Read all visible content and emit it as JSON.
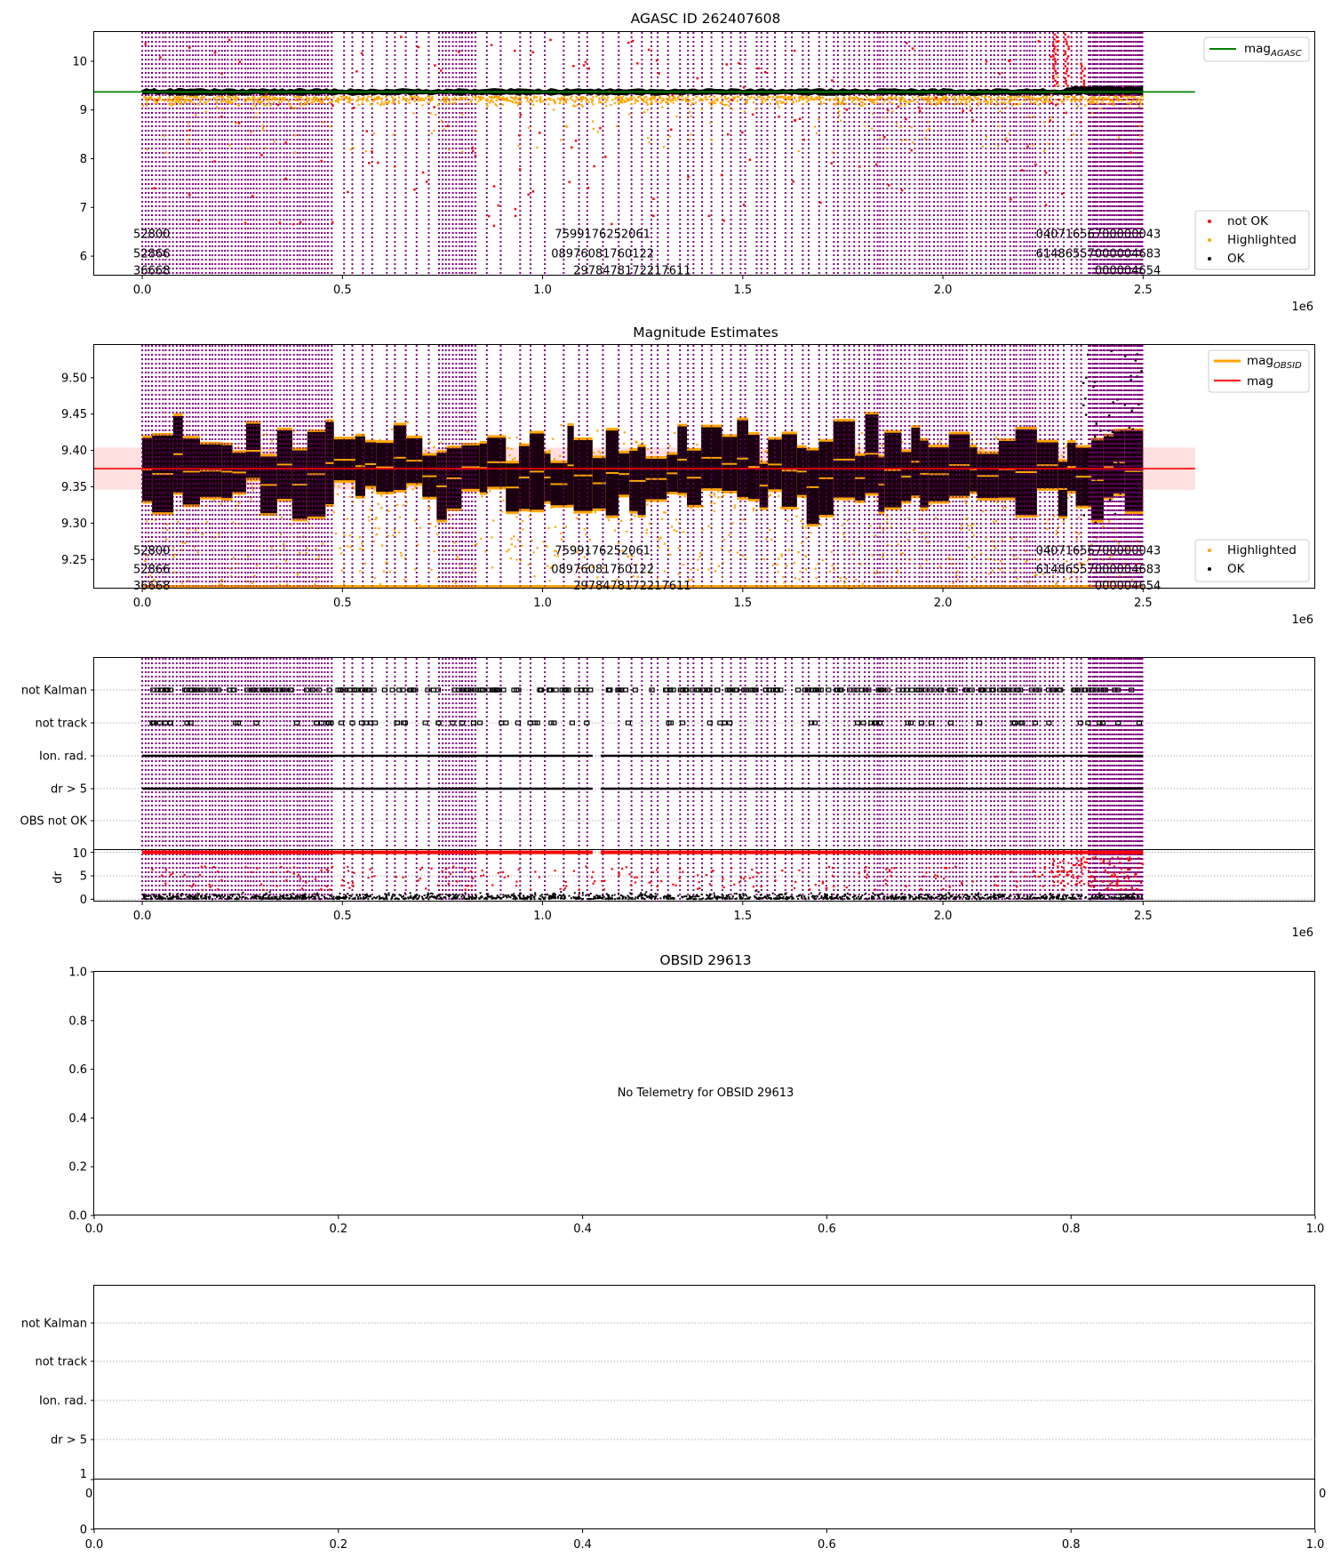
{
  "colors": {
    "purple": "#800080",
    "orange": "#ffa500",
    "red": "#ff0000",
    "black": "#000000",
    "green": "#008000",
    "band": "#ffcccc",
    "grid": "#b0b0b0"
  },
  "chart_data": [
    {
      "id": "agasc",
      "type": "scatter",
      "title": "AGASC ID 262407608",
      "xlabel": "",
      "ylabel": "",
      "x_offset_label": "1e6",
      "xlim": [
        -0.12,
        2.93
      ],
      "ylim": [
        5.6,
        10.6
      ],
      "x_ticks": [
        0.0,
        0.5,
        1.0,
        1.5,
        2.0,
        2.5
      ],
      "x_tick_labels": [
        "0.0",
        "0.5",
        "1.0",
        "1.5",
        "2.0",
        "2.5"
      ],
      "y_ticks": [
        6,
        7,
        8,
        9,
        10
      ],
      "y_tick_labels": [
        "6",
        "7",
        "8",
        "9",
        "10"
      ],
      "reference_lines": [
        {
          "name": "mag_AGASC",
          "y": 9.37,
          "color": "#008000",
          "x_range": [
            -0.12,
            2.63
          ]
        }
      ],
      "series": [
        {
          "name": "not OK",
          "color": "#ff0000",
          "approx_y_range": [
            6.6,
            10.6
          ]
        },
        {
          "name": "Highlighted",
          "color": "#ffa500",
          "approx_y_range": [
            8.0,
            9.7
          ]
        },
        {
          "name": "OK",
          "color": "#000000",
          "approx_y_range": [
            9.3,
            9.45
          ]
        }
      ],
      "data_x_range": [
        0.0,
        2.5
      ],
      "legends": [
        {
          "position": "upper-right",
          "entries": [
            {
              "label": "mag",
              "subscript": "AGASC",
              "kind": "line",
              "color": "#008000"
            }
          ]
        },
        {
          "position": "lower-right",
          "entries": [
            {
              "label": "not OK",
              "kind": "marker",
              "color": "#ff0000"
            },
            {
              "label": "Highlighted",
              "kind": "marker",
              "color": "#ffa500"
            },
            {
              "label": "OK",
              "kind": "marker",
              "color": "#000000"
            }
          ]
        }
      ],
      "annotation_rows": [
        {
          "first": "5",
          "last": "3",
          "left_fragment": "52800",
          "middle_sample": "7599176252061",
          "right_fragment": "04071656700000043"
        },
        {
          "first": "5",
          "last": "3",
          "left_fragment": "52866",
          "middle_sample": "08976081760122",
          "right_fragment": "61486557000004683"
        },
        {
          "first": "3",
          "last": "4",
          "left_fragment": "36668",
          "middle_sample": "2978478172217611",
          "right_fragment": "000004654"
        }
      ],
      "grid": false
    },
    {
      "id": "mag-estimates",
      "type": "scatter",
      "title": "Magnitude Estimates",
      "x_offset_label": "1e6",
      "xlim": [
        -0.12,
        2.93
      ],
      "ylim": [
        9.21,
        9.545
      ],
      "x_ticks": [
        0.0,
        0.5,
        1.0,
        1.5,
        2.0,
        2.5
      ],
      "x_tick_labels": [
        "0.0",
        "0.5",
        "1.0",
        "1.5",
        "2.0",
        "2.5"
      ],
      "y_ticks": [
        9.25,
        9.3,
        9.35,
        9.4,
        9.45,
        9.5
      ],
      "y_tick_labels": [
        "9.25",
        "9.30",
        "9.35",
        "9.40",
        "9.45",
        "9.50"
      ],
      "reference_lines": [
        {
          "name": "mag",
          "y": 9.375,
          "color": "#ff0000",
          "x_range": [
            -0.12,
            2.63
          ]
        }
      ],
      "bands": [
        {
          "name": "mag uncertainty",
          "y_range": [
            9.346,
            9.404
          ],
          "color": "#ffcccc",
          "x_range": [
            -0.12,
            2.63
          ]
        }
      ],
      "series": [
        {
          "name": "mag_OBSID",
          "color": "#ffa500",
          "kind": "segments"
        },
        {
          "name": "Highlighted",
          "color": "#ffa500",
          "approx_y_range": [
            9.21,
            9.545
          ]
        },
        {
          "name": "OK",
          "color": "#000000",
          "approx_y_range": [
            9.27,
            9.545
          ]
        }
      ],
      "legends": [
        {
          "position": "upper-right",
          "entries": [
            {
              "label": "mag",
              "subscript": "OBSID",
              "kind": "line",
              "color": "#ffa500"
            },
            {
              "label": "mag",
              "subscript": "",
              "kind": "line",
              "color": "#ff0000"
            }
          ]
        },
        {
          "position": "lower-right",
          "entries": [
            {
              "label": "Highlighted",
              "kind": "marker",
              "color": "#ffa500"
            },
            {
              "label": "OK",
              "kind": "marker",
              "color": "#000000"
            }
          ]
        }
      ],
      "grid": false
    },
    {
      "id": "flags",
      "type": "scatter",
      "title": "",
      "x_offset_label": "1e6",
      "xlim": [
        -0.12,
        2.93
      ],
      "x_ticks": [
        0.0,
        0.5,
        1.0,
        1.5,
        2.0,
        2.5
      ],
      "x_tick_labels": [
        "0.0",
        "0.5",
        "1.0",
        "1.5",
        "2.0",
        "2.5"
      ],
      "flag_rows": [
        "not Kalman",
        "not track",
        "Ion. rad.",
        "dr > 5",
        "OBS not OK"
      ],
      "dr_panel": {
        "ylabel": "dr",
        "ylim": [
          -0.5,
          10.5
        ],
        "y_ticks": [
          0,
          5,
          10
        ],
        "y_tick_labels": [
          "0",
          "5",
          "10"
        ],
        "clip_value": 10
      },
      "grid": true
    },
    {
      "id": "obsid",
      "type": "scatter",
      "title": "OBSID 29613",
      "message": "No Telemetry for OBSID 29613",
      "xlim": [
        0.0,
        1.0
      ],
      "ylim": [
        0.0,
        1.0
      ],
      "x_ticks": [
        0.0,
        0.2,
        0.4,
        0.6,
        0.8,
        1.0
      ],
      "x_tick_labels": [
        "0.0",
        "0.2",
        "0.4",
        "0.6",
        "0.8",
        "1.0"
      ],
      "y_ticks": [
        0.0,
        0.2,
        0.4,
        0.6,
        0.8,
        1.0
      ],
      "y_tick_labels": [
        "0.0",
        "0.2",
        "0.4",
        "0.6",
        "0.8",
        "1.0"
      ]
    },
    {
      "id": "obsid-flags",
      "type": "scatter",
      "title": "",
      "flag_rows": [
        "not Kalman",
        "not track",
        "Ion. rad.",
        "dr > 5"
      ],
      "inner_y_tick_labels": [
        "1",
        "0"
      ],
      "inner_partial_labels": [
        "0",
        "0"
      ],
      "xlim": [
        0.0,
        1.0
      ],
      "x_ticks": [
        0.0,
        0.2,
        0.4,
        0.6,
        0.8,
        1.0
      ],
      "x_tick_labels": [
        "0.0",
        "0.2",
        "0.4",
        "0.6",
        "0.8",
        "1.0"
      ]
    }
  ]
}
